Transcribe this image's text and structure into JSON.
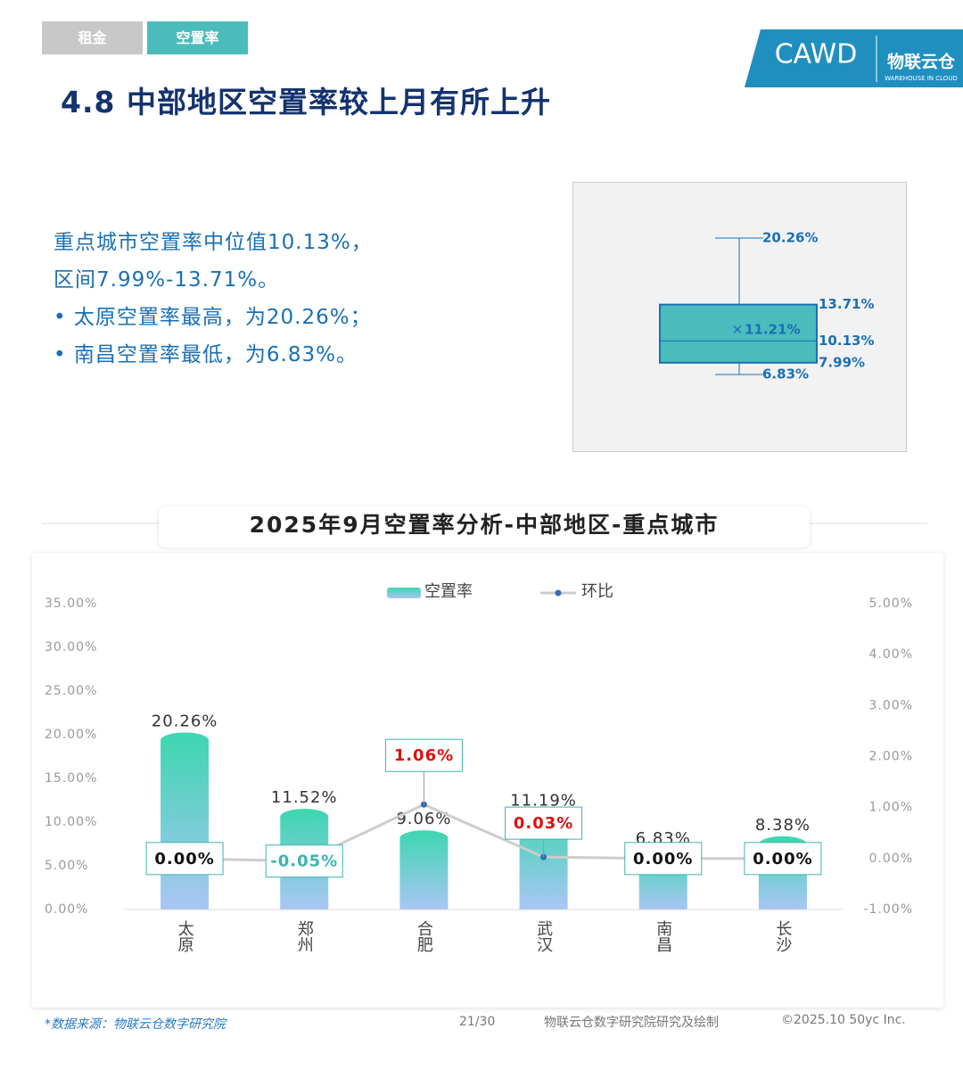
{
  "tabs": [
    "租金",
    "空置率"
  ],
  "logo": {
    "brand": "CAWD",
    "name": "物联云仓",
    "sub": "WAREHOUSE IN CLOUD"
  },
  "title": "4.8 中部地区空置率较上月有所上升",
  "summary": {
    "lines": [
      "重点城市空置率中位值10.13%，",
      "区间7.99%-13.71%。"
    ],
    "bullets": [
      "太原空置率最高，为20.26%；",
      "南昌空置率最低，为6.83%。"
    ]
  },
  "boxplot": {
    "max": 20.26,
    "q3": 13.71,
    "mean": 11.21,
    "median": 10.13,
    "q1": 7.99,
    "min": 6.83,
    "labels": {
      "max": "20.26%",
      "q3": "13.71%",
      "mean": "11.21%",
      "median": "10.13%",
      "q1": "7.99%",
      "min": "6.83%"
    }
  },
  "chart_data": {
    "type": "bar",
    "title": "2025年9月空置率分析-中部地区-重点城市",
    "categories": [
      "太原",
      "郑州",
      "合肥",
      "武汉",
      "南昌",
      "长沙"
    ],
    "series": [
      {
        "name": "空置率",
        "type": "bar",
        "color": "#3dd6b0",
        "values": [
          20.26,
          11.52,
          9.06,
          11.19,
          6.83,
          8.38
        ],
        "value_labels": [
          "20.26%",
          "11.52%",
          "9.06%",
          "11.19%",
          "6.83%",
          "8.38%"
        ]
      },
      {
        "name": "环比",
        "type": "line",
        "axis": "y2",
        "color": "#2f6db5",
        "values": [
          0,
          -0.05,
          1.06,
          0.03,
          0,
          0
        ],
        "value_labels": [
          "0.00%",
          "-0.05%",
          "1.06%",
          "0.03%",
          "0.00%",
          "0.00%"
        ]
      }
    ],
    "ylim": [
      0,
      35
    ],
    "yticks": [
      {
        "value": 0,
        "label": "0.00%"
      },
      {
        "value": 5,
        "label": "5.00%"
      },
      {
        "value": 10,
        "label": "10.00%"
      },
      {
        "value": 15,
        "label": "15.00%"
      },
      {
        "value": 20,
        "label": "20.00%"
      },
      {
        "value": 25,
        "label": "25.00%"
      },
      {
        "value": 30,
        "label": "30.00%"
      },
      {
        "value": 35,
        "label": "35.00%"
      }
    ],
    "y2lim": [
      -1,
      5
    ],
    "y2ticks": [
      {
        "value": -1,
        "label": "-1.00%"
      },
      {
        "value": 0,
        "label": "0.00%"
      },
      {
        "value": 1,
        "label": "1.00%"
      },
      {
        "value": 2,
        "label": "2.00%"
      },
      {
        "value": 3,
        "label": "3.00%"
      },
      {
        "value": 4,
        "label": "4.00%"
      },
      {
        "value": 5,
        "label": "5.00%"
      }
    ],
    "grid": false
  },
  "footer": {
    "source": "*数据来源：物联云仓数字研究院",
    "page": "21/30",
    "credit": "物联云仓数字研究院研究及绘制",
    "copyright": "©2025.10 50yc Inc."
  }
}
